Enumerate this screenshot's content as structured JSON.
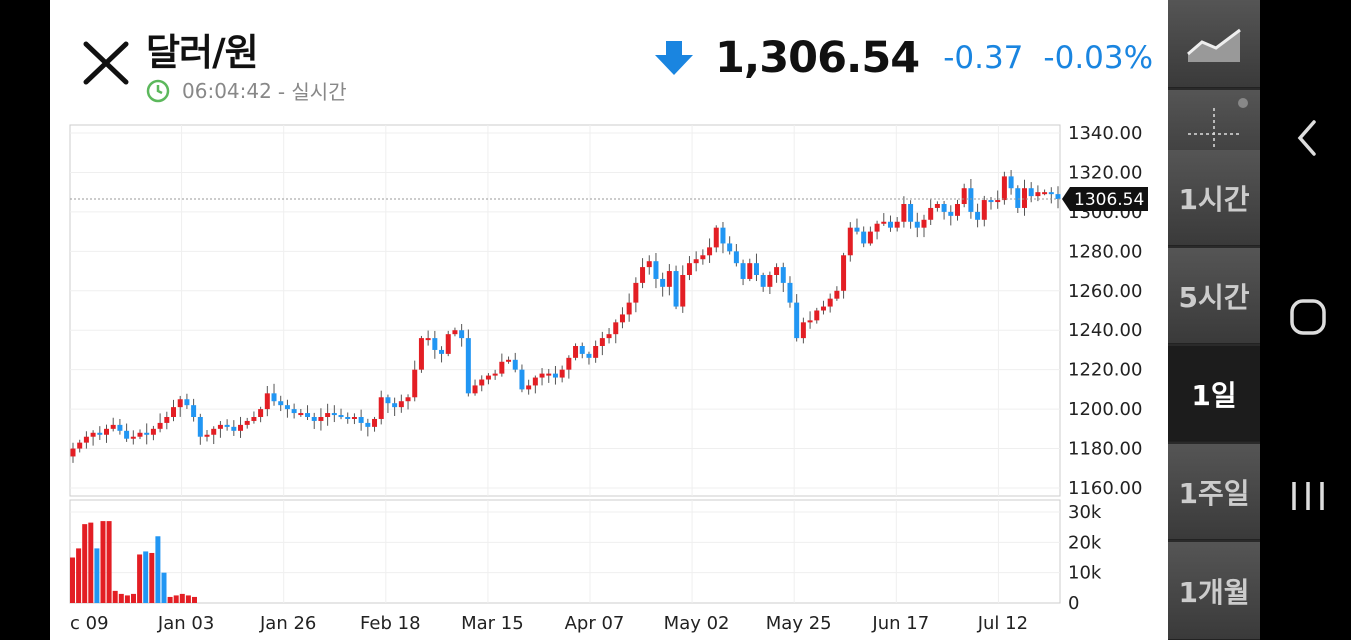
{
  "header": {
    "title": "달러/원",
    "time": "06:04:42",
    "time_suffix": "- 실시간",
    "price": "1,306.54",
    "change": "-0.37",
    "change_pct": "-0.03%"
  },
  "colors": {
    "up": "#e31e24",
    "down": "#2196f3",
    "change_text": "#1a85e0",
    "clock": "#5cb85c"
  },
  "sidebar": {
    "items": [
      {
        "label": "",
        "icon": "line-chart-icon"
      },
      {
        "label": "",
        "icon": "crosshair-icon"
      },
      {
        "label": "1시간"
      },
      {
        "label": "5시간"
      },
      {
        "label": "1일",
        "active": true
      },
      {
        "label": "1주일"
      },
      {
        "label": "1개월"
      }
    ]
  },
  "navbar": [
    "back-icon",
    "home-icon",
    "recent-apps-icon"
  ],
  "chart_data": {
    "type": "candlestick",
    "last_price_label": "1306.54",
    "last_price": 1306.54,
    "price_ylim": [
      1160,
      1340
    ],
    "price_ticks": [
      "1340.00",
      "1320.00",
      "1300.00",
      "1280.00",
      "1260.00",
      "1240.00",
      "1220.00",
      "1200.00",
      "1180.00",
      "1160.00"
    ],
    "volume_ylim": [
      0,
      30000
    ],
    "volume_ticks": [
      "30k",
      "20k",
      "10k",
      "0"
    ],
    "x_labels": [
      "c 09",
      "Jan 03",
      "Jan 26",
      "Feb 18",
      "Mar 15",
      "Apr 07",
      "May 02",
      "May 25",
      "Jun 17",
      "Jul 12"
    ],
    "closes": [
      1180,
      1183,
      1186,
      1188,
      1187,
      1190,
      1192,
      1189,
      1185,
      1186,
      1188,
      1187,
      1190,
      1193,
      1196,
      1201,
      1205,
      1202,
      1196,
      1186,
      1187,
      1190,
      1192,
      1191,
      1189,
      1192,
      1194,
      1196,
      1200,
      1208,
      1204,
      1202,
      1200,
      1198,
      1198,
      1196,
      1194,
      1196,
      1198,
      1197,
      1196,
      1195,
      1196,
      1193,
      1191,
      1195,
      1206,
      1203,
      1201,
      1204,
      1206,
      1220,
      1236,
      1236,
      1230,
      1228,
      1238,
      1240,
      1236,
      1208,
      1212,
      1215,
      1217,
      1218,
      1224,
      1225,
      1220,
      1210,
      1212,
      1216,
      1218,
      1218,
      1216,
      1220,
      1226,
      1232,
      1228,
      1226,
      1232,
      1236,
      1238,
      1244,
      1248,
      1254,
      1264,
      1272,
      1275,
      1266,
      1262,
      1270,
      1252,
      1268,
      1274,
      1276,
      1278,
      1282,
      1292,
      1284,
      1280,
      1274,
      1266,
      1274,
      1268,
      1262,
      1268,
      1272,
      1264,
      1254,
      1236,
      1244,
      1245,
      1250,
      1252,
      1256,
      1260,
      1278,
      1292,
      1290,
      1284,
      1290,
      1294,
      1295,
      1292,
      1295,
      1304,
      1295,
      1292,
      1296,
      1302,
      1304,
      1300,
      1298,
      1304,
      1312,
      1300,
      1296,
      1306,
      1305,
      1306,
      1318,
      1312,
      1302,
      1312,
      1308,
      1310,
      1310,
      1309,
      1306.54
    ],
    "volume": [
      15000,
      18000,
      26000,
      26500,
      18000,
      27000,
      27000,
      4000,
      3000,
      2500,
      3000,
      16000,
      17000,
      16500,
      22000,
      10000,
      2000,
      2500,
      3000,
      2500,
      2000
    ]
  }
}
